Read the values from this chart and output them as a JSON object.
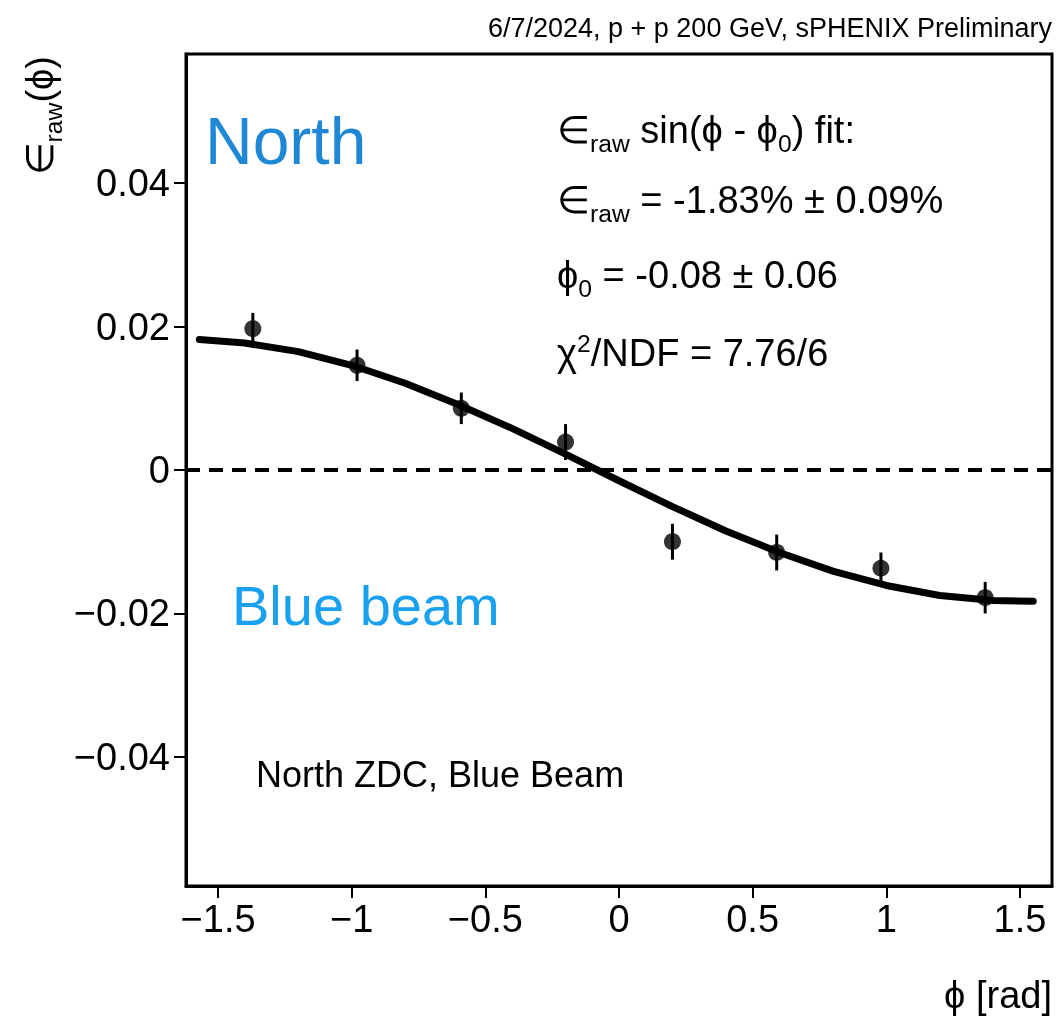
{
  "chart_data": {
    "type": "scatter",
    "title": "6/7/2024, p + p 200 GeV, sPHENIX Preliminary",
    "xlabel": "ϕ [rad]",
    "ylabel": "∈$_{raw}$(ϕ)",
    "annotations": [
      "North",
      "Blue beam",
      "∈$_{raw}$ sin(ϕ - ϕ$_{0}$) fit:",
      "∈$_{raw}$ = -1.83% ± 0.09%",
      "ϕ$_{0}$ = -0.08 ± 0.06",
      "χ$^{2}$/NDF = 7.76/6",
      "North ZDC, Blue Beam"
    ],
    "xlim": [
      -1.62,
      1.62
    ],
    "ylim": [
      -0.058,
      0.058
    ],
    "xticks": [
      {
        "value": -1.5,
        "label": "−1.5"
      },
      {
        "value": -1,
        "label": "−1"
      },
      {
        "value": -0.5,
        "label": "−0.5"
      },
      0,
      0.5,
      1,
      1.5
    ],
    "yticks": [
      {
        "value": -0.04,
        "label": "−0.04"
      },
      {
        "value": -0.02,
        "label": "−0.02"
      },
      0,
      0.02,
      0.04
    ],
    "series": [
      {
        "color": "#000000",
        "marker": "circle",
        "x": [
          -1.37,
          -0.98,
          -0.59,
          -0.2,
          0.2,
          0.59,
          0.98,
          1.37
        ],
        "values": [
          0.0197,
          0.0146,
          0.0086,
          0.0039,
          -0.01,
          -0.0115,
          -0.0137,
          -0.0178
        ],
        "errors": [
          0.0022,
          0.0022,
          0.0022,
          0.0025,
          0.0025,
          0.0025,
          0.0022,
          0.0022
        ]
      },
      {
        "type": "line",
        "color": "#000000",
        "marker": "none",
        "line_style": "solid",
        "x": [
          -1.57,
          -1.4,
          -1.2,
          -1.0,
          -0.8,
          -0.6,
          -0.4,
          -0.2,
          0,
          0.2,
          0.4,
          0.6,
          0.8,
          1.0,
          1.2,
          1.4,
          1.55
        ],
        "values": [
          0.0182,
          0.0177,
          0.0165,
          0.0146,
          0.0121,
          0.0091,
          0.0058,
          0.0022,
          -0.0015,
          -0.0051,
          -0.0085,
          -0.0115,
          -0.0141,
          -0.0161,
          -0.0175,
          -0.0182,
          -0.0183
        ]
      }
    ],
    "ref_lines": [
      {
        "axis": "y",
        "value": 0,
        "color": "#000000",
        "line_style": "dashed"
      }
    ]
  }
}
